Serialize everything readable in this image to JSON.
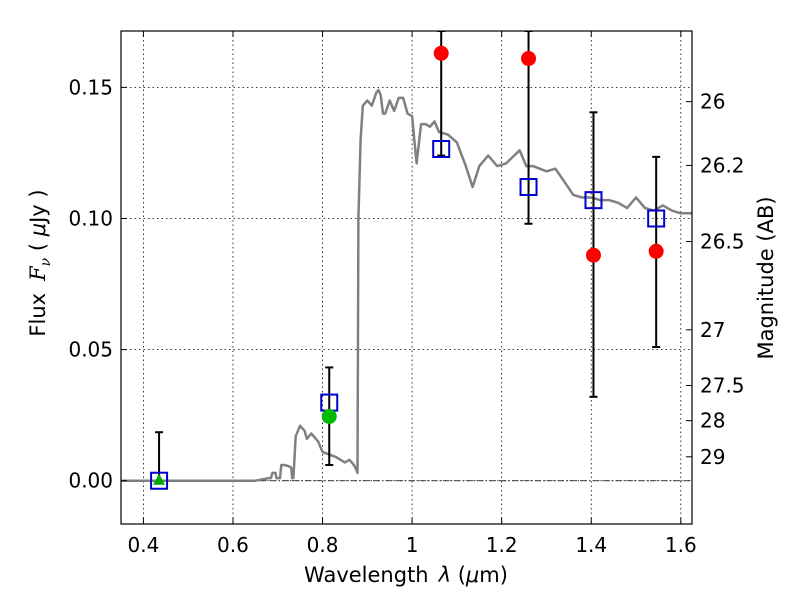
{
  "chart_data": {
    "type": "scatter",
    "title": "",
    "xlabel_parts": {
      "pre": "Wavelength",
      "sym": "λ",
      "open": " (",
      "mu": "μ",
      "unit": "m)"
    },
    "ylabel_parts": {
      "pre": "Flux",
      "F": "F",
      "nu": "ν",
      "open": " ( ",
      "mu": "μ",
      "unit": "Jy )"
    },
    "y2label": "Magnitude (AB)",
    "xlim": [
      0.35,
      1.625
    ],
    "ylim": [
      -0.0165,
      0.1715
    ],
    "x_ticks": [
      {
        "v": 0.4,
        "label": "0.4"
      },
      {
        "v": 0.6,
        "label": "0.6"
      },
      {
        "v": 0.8,
        "label": "0.8"
      },
      {
        "v": 1.0,
        "label": "1"
      },
      {
        "v": 1.2,
        "label": "1.2"
      },
      {
        "v": 1.4,
        "label": "1.4"
      },
      {
        "v": 1.6,
        "label": "1.6"
      }
    ],
    "y_ticks": [
      {
        "v": 0.0,
        "label": "0.00"
      },
      {
        "v": 0.05,
        "label": "0.05"
      },
      {
        "v": 0.1,
        "label": "0.10"
      },
      {
        "v": 0.15,
        "label": "0.15"
      }
    ],
    "y2_ticks": [
      {
        "mag": 26,
        "label": "26"
      },
      {
        "mag": 26.2,
        "label": "26.2"
      },
      {
        "mag": 26.5,
        "label": "26.5"
      },
      {
        "mag": 27,
        "label": "27"
      },
      {
        "mag": 27.5,
        "label": "27.5"
      },
      {
        "mag": 28,
        "label": "28"
      },
      {
        "mag": 29,
        "label": "29"
      }
    ],
    "grid": true,
    "zero_line": true,
    "series": [
      {
        "kind": "line",
        "color": "#808080",
        "points": [
          [
            0.35,
            0.0
          ],
          [
            0.65,
            0.0
          ],
          [
            0.665,
            0.0005
          ],
          [
            0.68,
            0.001
          ],
          [
            0.685,
            0.001
          ],
          [
            0.688,
            0.003
          ],
          [
            0.695,
            0.003
          ],
          [
            0.697,
            0.001
          ],
          [
            0.705,
            0.001
          ],
          [
            0.708,
            0.006
          ],
          [
            0.715,
            0.006
          ],
          [
            0.725,
            0.0055
          ],
          [
            0.73,
            0.005
          ],
          [
            0.732,
            0.001
          ],
          [
            0.735,
            0.001
          ],
          [
            0.74,
            0.017
          ],
          [
            0.75,
            0.021
          ],
          [
            0.76,
            0.019
          ],
          [
            0.765,
            0.016
          ],
          [
            0.775,
            0.018
          ],
          [
            0.79,
            0.015
          ],
          [
            0.8,
            0.011
          ],
          [
            0.83,
            0.009
          ],
          [
            0.85,
            0.007
          ],
          [
            0.86,
            0.008
          ],
          [
            0.87,
            0.006
          ],
          [
            0.876,
            0.004
          ],
          [
            0.878,
            0.003
          ],
          [
            0.88,
            0.1
          ],
          [
            0.885,
            0.13
          ],
          [
            0.89,
            0.143
          ],
          [
            0.9,
            0.145
          ],
          [
            0.91,
            0.143
          ],
          [
            0.92,
            0.148
          ],
          [
            0.925,
            0.149
          ],
          [
            0.93,
            0.147
          ],
          [
            0.935,
            0.14
          ],
          [
            0.94,
            0.14
          ],
          [
            0.95,
            0.145
          ],
          [
            0.96,
            0.141
          ],
          [
            0.97,
            0.146
          ],
          [
            0.98,
            0.146
          ],
          [
            0.99,
            0.14
          ],
          [
            1.0,
            0.139
          ],
          [
            1.005,
            0.13
          ],
          [
            1.01,
            0.121
          ],
          [
            1.02,
            0.136
          ],
          [
            1.03,
            0.136
          ],
          [
            1.04,
            0.135
          ],
          [
            1.05,
            0.137
          ],
          [
            1.06,
            0.133
          ],
          [
            1.08,
            0.132
          ],
          [
            1.1,
            0.129
          ],
          [
            1.12,
            0.12
          ],
          [
            1.135,
            0.112
          ],
          [
            1.15,
            0.12
          ],
          [
            1.17,
            0.124
          ],
          [
            1.19,
            0.12
          ],
          [
            1.21,
            0.121
          ],
          [
            1.24,
            0.126
          ],
          [
            1.255,
            0.12
          ],
          [
            1.27,
            0.12
          ],
          [
            1.3,
            0.118
          ],
          [
            1.32,
            0.119
          ],
          [
            1.34,
            0.114
          ],
          [
            1.36,
            0.109
          ],
          [
            1.38,
            0.108
          ],
          [
            1.4,
            0.108
          ],
          [
            1.42,
            0.107
          ],
          [
            1.44,
            0.107
          ],
          [
            1.46,
            0.106
          ],
          [
            1.48,
            0.104
          ],
          [
            1.5,
            0.108
          ],
          [
            1.52,
            0.104
          ],
          [
            1.54,
            0.103
          ],
          [
            1.56,
            0.105
          ],
          [
            1.58,
            0.103
          ],
          [
            1.6,
            0.102
          ],
          [
            1.625,
            0.102
          ]
        ]
      },
      {
        "kind": "errorbar",
        "color": "#000000",
        "bars": [
          {
            "x": 0.435,
            "low": -0.001,
            "high": 0.0185
          },
          {
            "x": 0.815,
            "low": 0.006,
            "high": 0.0432
          },
          {
            "x": 1.065,
            "low": 0.124,
            "high": 0.1715
          },
          {
            "x": 1.26,
            "low": 0.098,
            "high": 0.1715
          },
          {
            "x": 1.405,
            "low": 0.032,
            "high": 0.1405
          },
          {
            "x": 1.545,
            "low": 0.051,
            "high": 0.1235
          }
        ]
      },
      {
        "kind": "squares",
        "color": "#0000cc",
        "points": [
          [
            0.435,
            0.0
          ],
          [
            0.815,
            0.0298
          ],
          [
            1.065,
            0.1265
          ],
          [
            1.26,
            0.112
          ],
          [
            1.405,
            0.107
          ],
          [
            1.545,
            0.1
          ]
        ]
      },
      {
        "kind": "circles",
        "color": "#00bb00",
        "points": [
          [
            0.815,
            0.0245
          ]
        ]
      },
      {
        "kind": "triangles",
        "color": "#00aa00",
        "points": [
          [
            0.435,
            0.0
          ]
        ]
      },
      {
        "kind": "circles",
        "color": "#ff0000",
        "points": [
          [
            1.065,
            0.163
          ],
          [
            1.26,
            0.161
          ],
          [
            1.405,
            0.086
          ],
          [
            1.545,
            0.0875
          ]
        ]
      }
    ]
  }
}
